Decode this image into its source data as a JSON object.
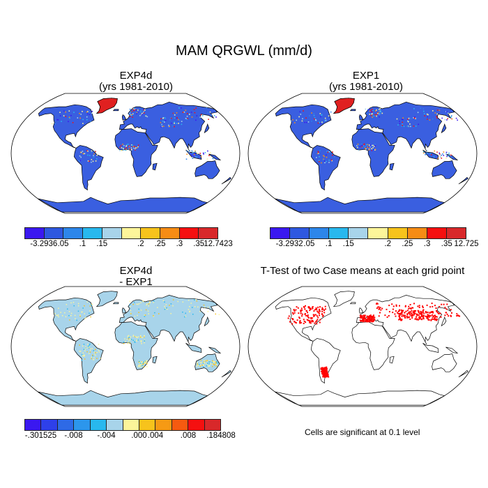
{
  "main_title": "MAM QRGWL (mm/d)",
  "panels": {
    "top_left": {
      "title": "EXP4d",
      "subtitle": "(yrs 1981-2010)",
      "fill": "#3a5fe0",
      "scheme": "blue"
    },
    "top_right": {
      "title": "EXP1",
      "subtitle": "(yrs 1981-2010)",
      "fill": "#3a5fe0",
      "scheme": "blue"
    },
    "bottom_left": {
      "title": "EXP4d",
      "subtitle": "- EXP1",
      "fill": "#a8d4ea",
      "scheme": "diff"
    },
    "bottom_right": {
      "title": "T-Test of two Case means at each grid point",
      "fill": "#ffffff",
      "scheme": "ttest"
    }
  },
  "colorbars": {
    "top_left": {
      "colors": [
        "#3a18f0",
        "#2e58e0",
        "#2d86ea",
        "#28b8ee",
        "#a8d4ea",
        "#fcf59a",
        "#f7c31c",
        "#f68c14",
        "#f51010",
        "#d8282a"
      ],
      "labels": [
        "-3.2936",
        ".05",
        ".1",
        ".15",
        ".2",
        ".25",
        ".3",
        ".35",
        "12.7423"
      ]
    },
    "top_right": {
      "colors": [
        "#3a18f0",
        "#2e58e0",
        "#2d86ea",
        "#28b8ee",
        "#a8d4ea",
        "#fcf59a",
        "#f7c31c",
        "#f68c14",
        "#f51010",
        "#d8282a"
      ],
      "labels": [
        "-3.2932",
        ".05",
        ".1",
        ".15",
        ".2",
        ".25",
        ".3",
        ".35",
        "12.725"
      ]
    },
    "bottom_left": {
      "colors": [
        "#3a18f0",
        "#2e40ea",
        "#2e6ae6",
        "#2c96ec",
        "#28b8ee",
        "#a8d4ea",
        "#fcf59a",
        "#f7c31c",
        "#f69a14",
        "#f65a10",
        "#f51010",
        "#d8282a"
      ],
      "labels": [
        "-.301525",
        "-.008",
        "-.004",
        ".000",
        ".004",
        ".008",
        ".184808"
      ]
    }
  },
  "significance_note": "Cells are significant at 0.1 level",
  "significance_color": "#ff0000"
}
